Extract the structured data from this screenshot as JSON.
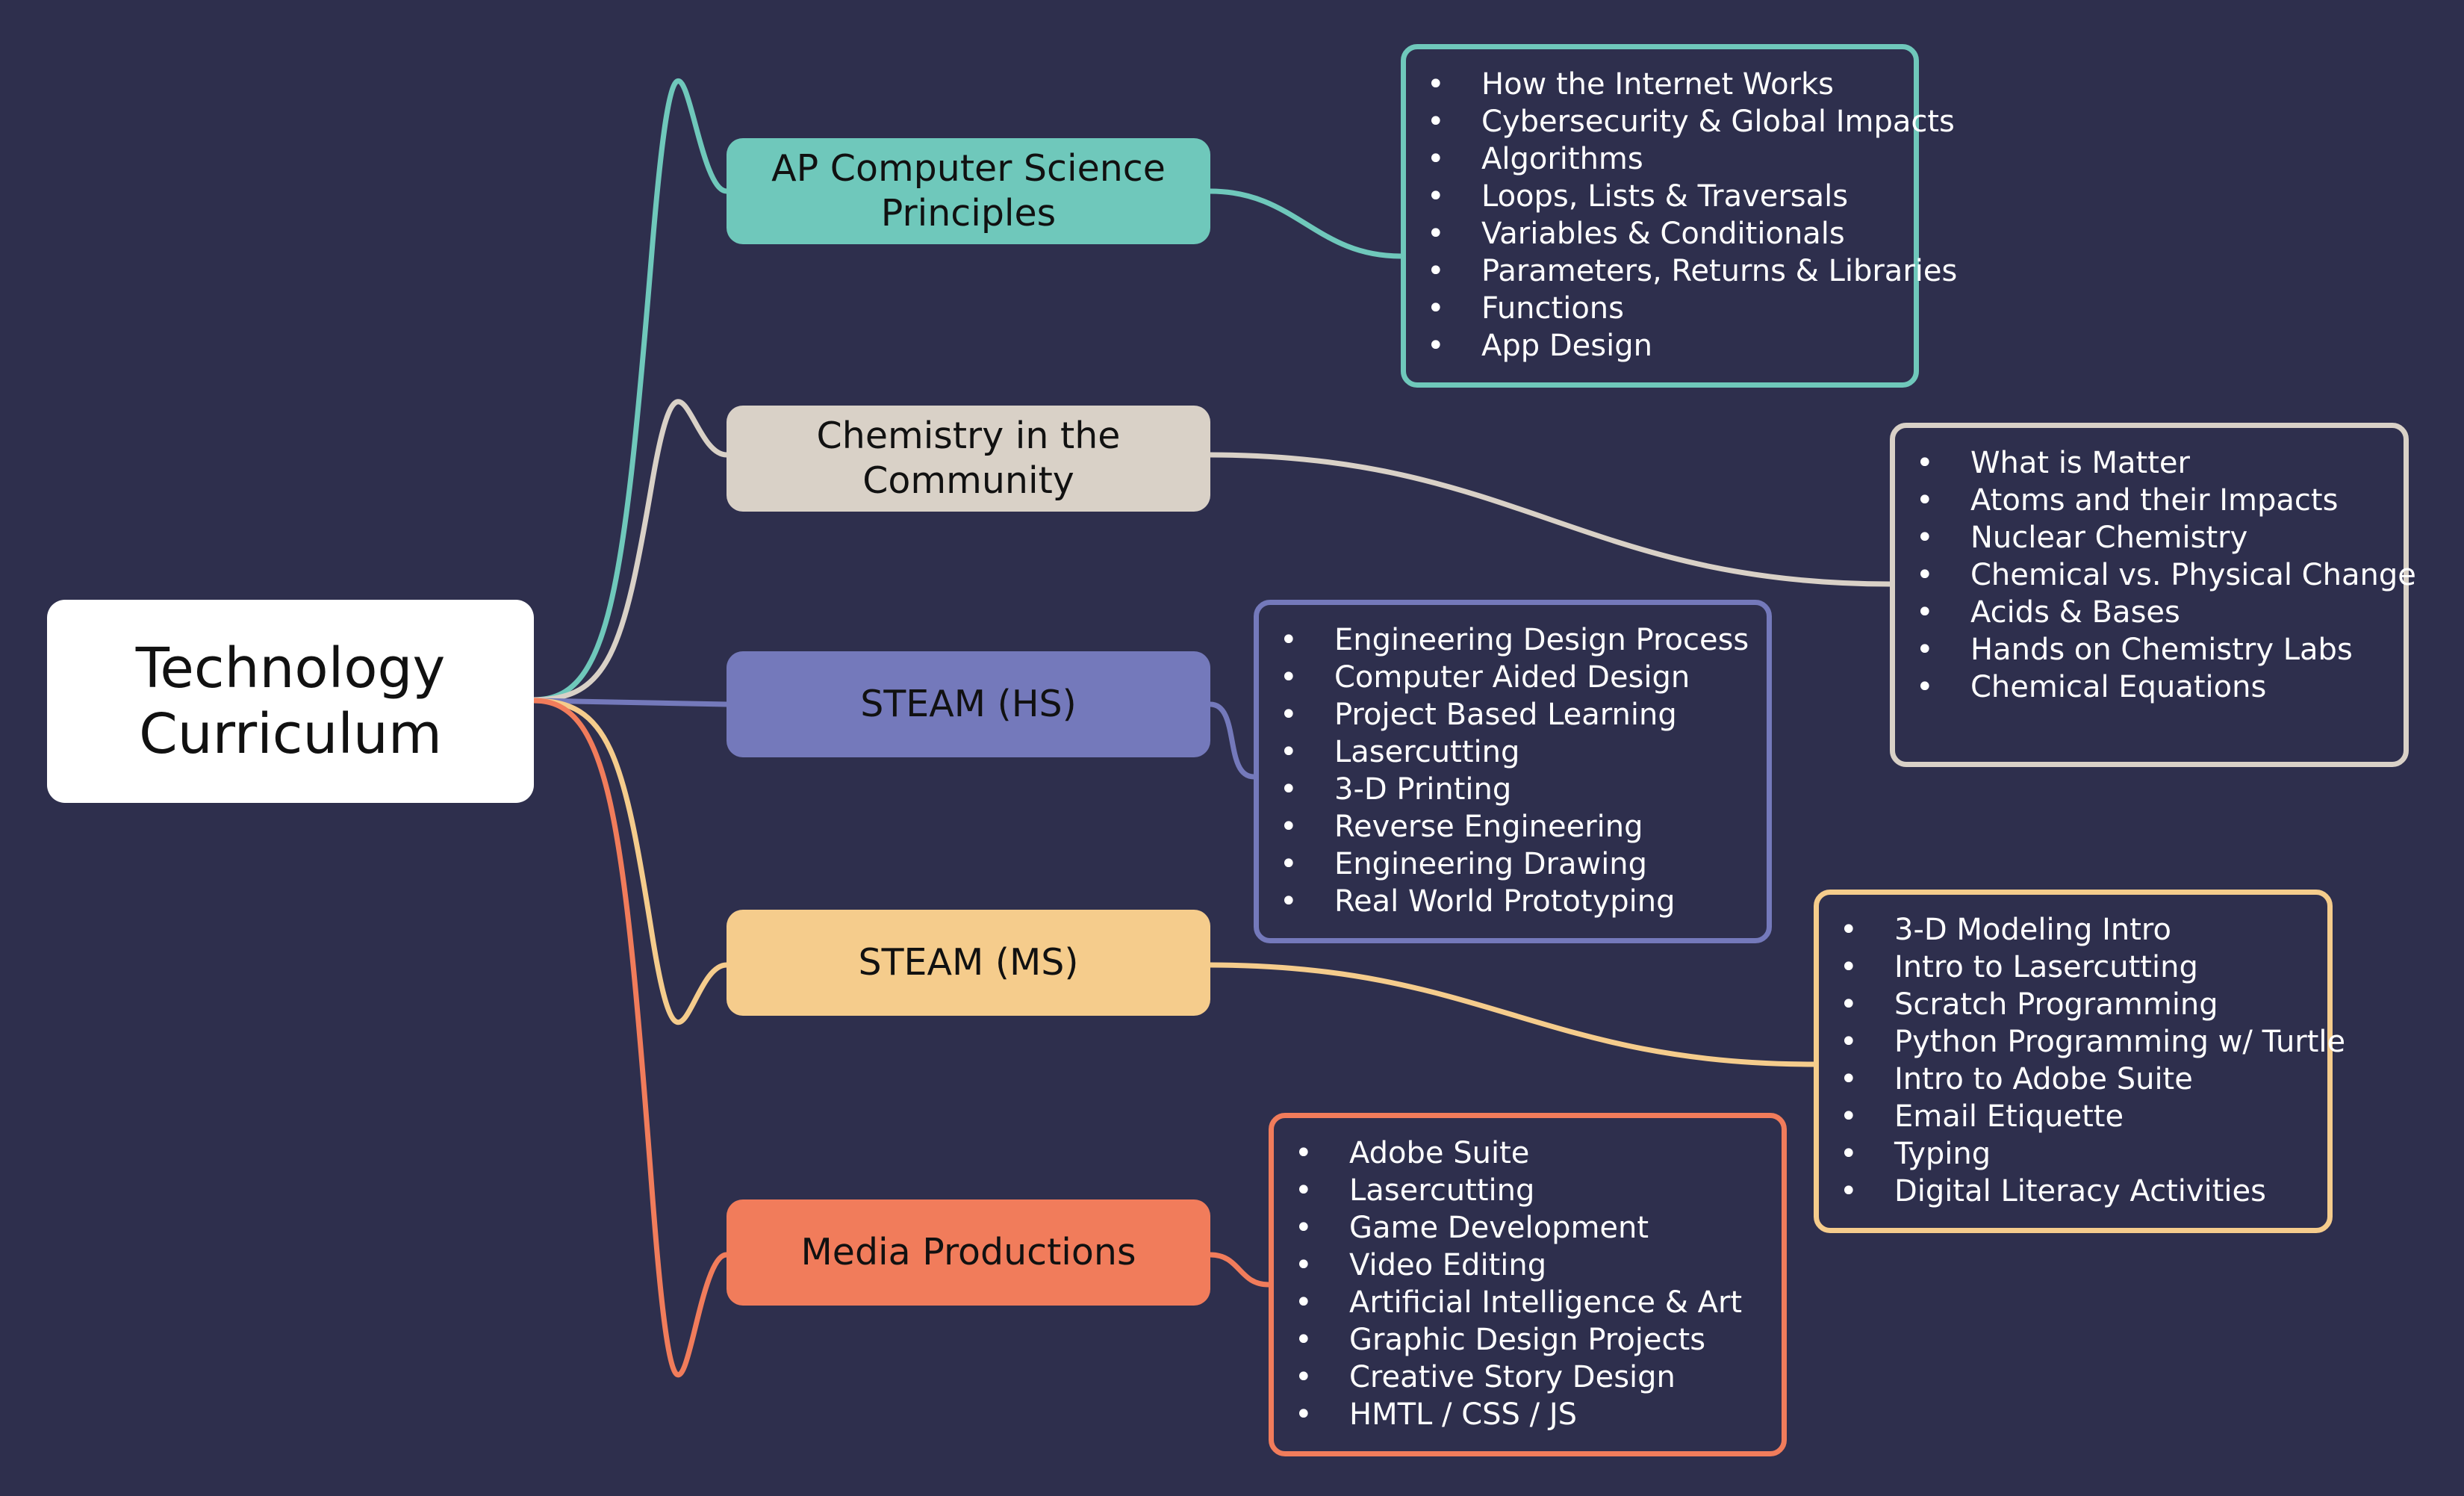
{
  "diagram": {
    "root": {
      "label": "Technology Curriculum",
      "lines": [
        "Technology",
        "Curriculum"
      ]
    },
    "colors": {
      "background": "#2e2f4d",
      "root_fill": "#ffffff",
      "teal": "#6fc8bb",
      "beige": "#d9d1c7",
      "periwinkle": "#7479bb",
      "yellow": "#f5cc8c",
      "orange": "#f17c5b"
    },
    "branches": [
      {
        "id": "apcsp",
        "label": "AP Computer Science\nPrinciples",
        "color": "#6fc8bb",
        "topics": [
          "How the Internet Works",
          "Cybersecurity & Global Impacts",
          "Algorithms",
          "Loops, Lists & Traversals",
          "Variables & Conditionals",
          "Parameters, Returns & Libraries",
          "Functions",
          "App Design"
        ]
      },
      {
        "id": "chem",
        "label": "Chemistry in the\nCommunity",
        "color": "#d9d1c7",
        "topics": [
          "What is Matter",
          "Atoms and their Impacts",
          "Nuclear Chemistry",
          "Chemical vs. Physical Change",
          "Acids & Bases",
          "Hands on Chemistry Labs",
          "Chemical Equations"
        ]
      },
      {
        "id": "steamhs",
        "label": "STEAM (HS)",
        "color": "#7479bb",
        "topics": [
          "Engineering Design Process",
          "Computer Aided Design",
          "Project Based Learning",
          "Lasercutting",
          "3-D Printing",
          "Reverse Engineering",
          "Engineering Drawing",
          "Real World Prototyping"
        ]
      },
      {
        "id": "steamms",
        "label": "STEAM (MS)",
        "color": "#f5cc8c",
        "topics": [
          "3-D Modeling Intro",
          "Intro to Lasercutting",
          "Scratch Programming",
          "Python Programming w/ Turtle",
          "Intro to Adobe Suite",
          "Email Etiquette",
          "Typing",
          "Digital Literacy Activities"
        ]
      },
      {
        "id": "media",
        "label": "Media Productions",
        "color": "#f17c5b",
        "topics": [
          "Adobe Suite",
          "Lasercutting",
          "Game Development",
          "Video Editing",
          "Artificial Intelligence & Art",
          "Graphic Design Projects",
          "Creative Story Design",
          "HMTL / CSS / JS"
        ]
      }
    ],
    "bullet_glyph": "•"
  }
}
